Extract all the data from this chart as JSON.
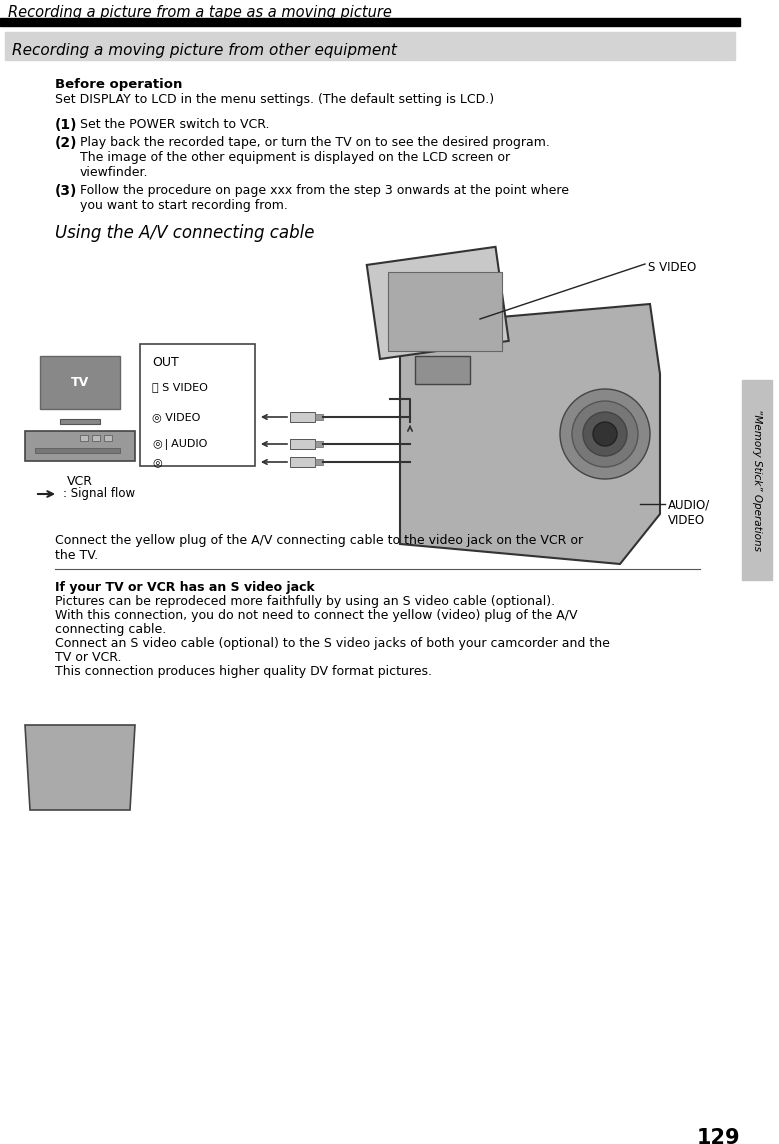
{
  "page_num": "129",
  "header_title": "Recording a picture from a tape as a moving picture",
  "section_title": "Recording a moving picture from other equipment",
  "section_bg": "#d4d4d4",
  "bg_color": "#ffffff",
  "before_op_bold": "Before operation",
  "before_op_text": "Set DISPLAY to LCD in the menu settings. (The default setting is LCD.)",
  "step1_bold": "(1)",
  "step1_text": "Set the POWER switch to VCR.",
  "step2_bold": "(2)",
  "step2_line1": "Play back the recorded tape, or turn the TV on to see the desired program.",
  "step2_line2": "The image of the other equipment is displayed on the LCD screen or",
  "step2_line3": "viewfinder.",
  "step3_bold": "(3)",
  "step3_line1": "Follow the procedure on page xxx from the step 3 onwards at the point where",
  "step3_line2": "you want to start recording from.",
  "subtitle": "Using the A/V connecting cable",
  "label_svideo": "S VIDEO",
  "label_audiovideo": "AUDIO/\nVIDEO",
  "label_out": "OUT",
  "label_svideo_box": "S VIDEO",
  "label_video": "VIDEO",
  "label_audio": "AUDIO",
  "label_tv": "TV",
  "label_vcr": "VCR",
  "label_signal_flow": ": Signal flow",
  "connect_line1": "Connect the yellow plug of the A/V connecting cable to the video jack on the VCR or",
  "connect_line2": "the TV.",
  "if_your_bold": "If your TV or VCR has an S video jack",
  "if_your_lines": [
    "Pictures can be reprodeced more faithfully by using an S video cable (optional).",
    "With this connection, you do not need to connect the yellow (video) plug of the A/V",
    "connecting cable.",
    "Connect an S video cable (optional) to the S video jacks of both your camcorder and the",
    "TV or VCR.",
    "This connection produces higher quality DV format pictures."
  ],
  "sidebar_text": "“Memory Stick” Operations",
  "sidebar_bg": "#c0c0c0",
  "text_color": "#000000"
}
